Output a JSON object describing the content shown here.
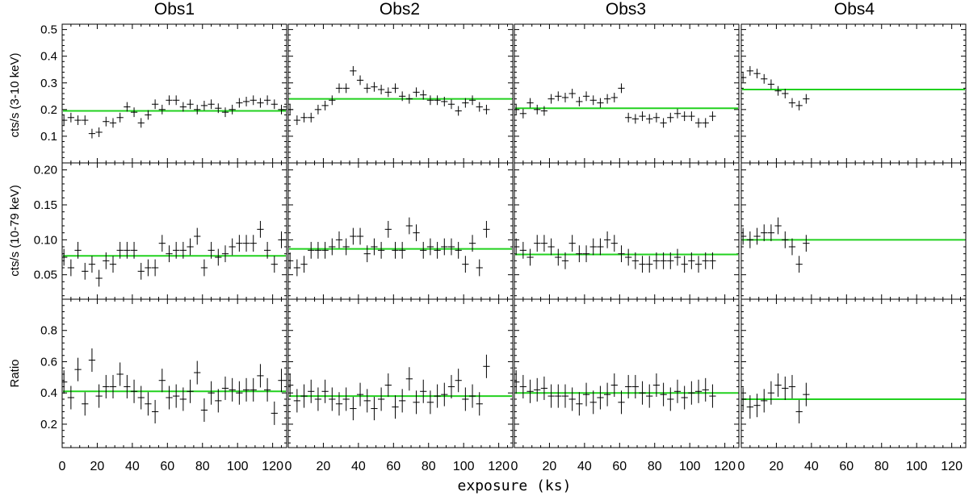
{
  "figure": {
    "column_titles": [
      "Obs1",
      "Obs2",
      "Obs3",
      "Obs4"
    ],
    "x_axis_label": "exposure (ks)",
    "x_tick_labels": [
      "0",
      "20",
      "40",
      "60",
      "80",
      "100",
      "120"
    ]
  },
  "colors": {
    "fit_line": "#22d11f",
    "data": "#000000"
  },
  "chart_data": {
    "type": "scatter",
    "layout": "3 rows x 4 columns of panels sharing x axis per column",
    "xlim": [
      0,
      128
    ],
    "x_ticks": [
      0,
      20,
      40,
      60,
      80,
      100,
      120
    ],
    "x_error_ks": 1.9,
    "rows": [
      {
        "ylabel": "cts/s (3-10 keV)",
        "ylim": [
          0.0,
          0.52
        ],
        "y_ticks": [
          0.1,
          0.2,
          0.3,
          0.4,
          0.5
        ],
        "y_tick_labels": [
          "0.1",
          "0.2",
          "0.3",
          "0.4",
          "0.5"
        ],
        "y_error": 0.018,
        "panels": [
          {
            "obs": "Obs1",
            "fit": 0.195,
            "x": [
              1,
              5,
              9,
              13,
              17,
              21,
              25,
              29,
              33,
              37,
              41,
              45,
              49,
              53,
              57,
              61,
              65,
              69,
              73,
              77,
              81,
              85,
              89,
              93,
              97,
              101,
              105,
              109,
              113,
              117,
              121,
              125,
              128
            ],
            "y": [
              0.16,
              0.17,
              0.16,
              0.16,
              0.11,
              0.115,
              0.155,
              0.15,
              0.17,
              0.21,
              0.19,
              0.15,
              0.18,
              0.22,
              0.2,
              0.235,
              0.235,
              0.21,
              0.22,
              0.2,
              0.215,
              0.22,
              0.205,
              0.19,
              0.2,
              0.225,
              0.23,
              0.235,
              0.225,
              0.235,
              0.22,
              0.2,
              0.21
            ]
          },
          {
            "obs": "Obs2",
            "fit": 0.24,
            "x": [
              1,
              5,
              9,
              13,
              17,
              21,
              25,
              29,
              33,
              37,
              41,
              45,
              49,
              53,
              57,
              61,
              65,
              69,
              73,
              77,
              81,
              85,
              89,
              93,
              97,
              101,
              105,
              109,
              113
            ],
            "y": [
              0.2,
              0.16,
              0.17,
              0.17,
              0.2,
              0.215,
              0.235,
              0.28,
              0.28,
              0.345,
              0.31,
              0.28,
              0.285,
              0.275,
              0.265,
              0.28,
              0.25,
              0.24,
              0.265,
              0.255,
              0.235,
              0.235,
              0.23,
              0.22,
              0.195,
              0.225,
              0.235,
              0.21,
              0.2
            ]
          },
          {
            "obs": "Obs3",
            "fit": 0.205,
            "x": [
              1,
              5,
              9,
              13,
              17,
              21,
              25,
              29,
              33,
              37,
              41,
              45,
              49,
              53,
              57,
              61,
              65,
              69,
              73,
              77,
              81,
              85,
              89,
              93,
              97,
              101,
              105,
              109,
              113
            ],
            "y": [
              0.2,
              0.185,
              0.225,
              0.2,
              0.195,
              0.24,
              0.25,
              0.245,
              0.26,
              0.23,
              0.25,
              0.235,
              0.225,
              0.24,
              0.245,
              0.28,
              0.17,
              0.165,
              0.175,
              0.165,
              0.17,
              0.15,
              0.17,
              0.185,
              0.175,
              0.175,
              0.15,
              0.15,
              0.175
            ]
          },
          {
            "obs": "Obs4",
            "fit": 0.275,
            "x": [
              1,
              5,
              9,
              13,
              17,
              21,
              25,
              29,
              33,
              37
            ],
            "y": [
              0.32,
              0.345,
              0.335,
              0.315,
              0.295,
              0.27,
              0.26,
              0.225,
              0.215,
              0.24
            ]
          }
        ]
      },
      {
        "ylabel": "cts/s (10-79 keV)",
        "ylim": [
          0.015,
          0.21
        ],
        "y_ticks": [
          0.05,
          0.1,
          0.15,
          0.2
        ],
        "y_tick_labels": [
          "0.05",
          "0.10",
          "0.15",
          "0.20"
        ],
        "y_error": 0.012,
        "panels": [
          {
            "obs": "Obs1",
            "fit": 0.077,
            "x": [
              1,
              5,
              9,
              13,
              17,
              21,
              25,
              29,
              33,
              37,
              41,
              45,
              49,
              53,
              57,
              61,
              65,
              69,
              73,
              77,
              81,
              85,
              89,
              93,
              97,
              101,
              105,
              109,
              113,
              117,
              121,
              125,
              128
            ],
            "y": [
              0.075,
              0.06,
              0.085,
              0.055,
              0.065,
              0.045,
              0.07,
              0.065,
              0.085,
              0.085,
              0.085,
              0.055,
              0.06,
              0.06,
              0.095,
              0.08,
              0.085,
              0.085,
              0.09,
              0.105,
              0.06,
              0.085,
              0.075,
              0.08,
              0.09,
              0.095,
              0.095,
              0.095,
              0.115,
              0.085,
              0.065,
              0.1,
              0.1
            ]
          },
          {
            "obs": "Obs2",
            "fit": 0.087,
            "x": [
              1,
              5,
              9,
              13,
              17,
              21,
              25,
              29,
              33,
              37,
              41,
              45,
              49,
              53,
              57,
              61,
              65,
              69,
              73,
              77,
              81,
              85,
              89,
              93,
              97,
              101,
              105,
              109,
              113
            ],
            "y": [
              0.07,
              0.06,
              0.065,
              0.085,
              0.085,
              0.085,
              0.09,
              0.1,
              0.09,
              0.105,
              0.105,
              0.08,
              0.09,
              0.085,
              0.115,
              0.085,
              0.085,
              0.12,
              0.11,
              0.085,
              0.09,
              0.085,
              0.09,
              0.09,
              0.085,
              0.065,
              0.095,
              0.06,
              0.115
            ]
          },
          {
            "obs": "Obs3",
            "fit": 0.079,
            "x": [
              1,
              5,
              9,
              13,
              17,
              21,
              25,
              29,
              33,
              37,
              41,
              45,
              49,
              53,
              57,
              61,
              65,
              69,
              73,
              77,
              81,
              85,
              89,
              93,
              97,
              101,
              105,
              109,
              113
            ],
            "y": [
              0.09,
              0.085,
              0.075,
              0.095,
              0.095,
              0.09,
              0.075,
              0.07,
              0.095,
              0.08,
              0.08,
              0.09,
              0.09,
              0.1,
              0.095,
              0.08,
              0.075,
              0.07,
              0.065,
              0.065,
              0.07,
              0.07,
              0.07,
              0.075,
              0.065,
              0.07,
              0.065,
              0.07,
              0.07
            ]
          },
          {
            "obs": "Obs4",
            "fit": 0.1,
            "x": [
              1,
              5,
              9,
              13,
              17,
              21,
              25,
              29,
              33,
              37
            ],
            "y": [
              0.105,
              0.1,
              0.105,
              0.11,
              0.11,
              0.12,
              0.1,
              0.09,
              0.065,
              0.095
            ]
          }
        ]
      },
      {
        "ylabel": "Ratio",
        "ylim": [
          0.05,
          1.0
        ],
        "y_ticks": [
          0.2,
          0.4,
          0.6,
          0.8
        ],
        "y_tick_labels": [
          "0.2",
          "0.4",
          "0.6",
          "0.8"
        ],
        "y_error": 0.075,
        "panels": [
          {
            "obs": "Obs1",
            "fit": 0.41,
            "x": [
              1,
              5,
              9,
              13,
              17,
              21,
              25,
              29,
              33,
              37,
              41,
              45,
              49,
              53,
              57,
              61,
              65,
              69,
              73,
              77,
              81,
              85,
              89,
              93,
              97,
              101,
              105,
              109,
              113,
              117,
              121,
              125,
              128
            ],
            "y": [
              0.47,
              0.37,
              0.55,
              0.33,
              0.61,
              0.38,
              0.44,
              0.44,
              0.52,
              0.44,
              0.41,
              0.37,
              0.33,
              0.28,
              0.48,
              0.37,
              0.38,
              0.36,
              0.41,
              0.53,
              0.29,
              0.4,
              0.35,
              0.43,
              0.42,
              0.4,
              0.42,
              0.42,
              0.51,
              0.42,
              0.27,
              0.48,
              0.32
            ]
          },
          {
            "obs": "Obs2",
            "fit": 0.38,
            "x": [
              1,
              5,
              9,
              13,
              17,
              21,
              25,
              29,
              33,
              37,
              41,
              45,
              49,
              53,
              57,
              61,
              65,
              69,
              73,
              77,
              81,
              85,
              89,
              93,
              97,
              101,
              105,
              109,
              113
            ],
            "y": [
              0.45,
              0.35,
              0.38,
              0.41,
              0.36,
              0.41,
              0.36,
              0.33,
              0.36,
              0.3,
              0.39,
              0.35,
              0.3,
              0.36,
              0.45,
              0.31,
              0.35,
              0.49,
              0.34,
              0.41,
              0.34,
              0.38,
              0.39,
              0.44,
              0.48,
              0.36,
              0.38,
              0.33,
              0.57
            ]
          },
          {
            "obs": "Obs3",
            "fit": 0.4,
            "x": [
              1,
              5,
              9,
              13,
              17,
              21,
              25,
              29,
              33,
              37,
              41,
              45,
              49,
              53,
              57,
              61,
              65,
              69,
              73,
              77,
              81,
              85,
              89,
              93,
              97,
              101,
              105,
              109,
              113
            ],
            "y": [
              0.47,
              0.44,
              0.41,
              0.42,
              0.43,
              0.38,
              0.38,
              0.38,
              0.36,
              0.33,
              0.39,
              0.34,
              0.37,
              0.39,
              0.45,
              0.34,
              0.44,
              0.44,
              0.4,
              0.38,
              0.45,
              0.39,
              0.36,
              0.41,
              0.37,
              0.4,
              0.41,
              0.42,
              0.38
            ]
          },
          {
            "obs": "Obs4",
            "fit": 0.36,
            "x": [
              1,
              5,
              9,
              13,
              17,
              21,
              25,
              29,
              33,
              37
            ],
            "y": [
              0.36,
              0.31,
              0.32,
              0.35,
              0.4,
              0.45,
              0.43,
              0.44,
              0.28,
              0.39
            ]
          }
        ]
      }
    ]
  }
}
